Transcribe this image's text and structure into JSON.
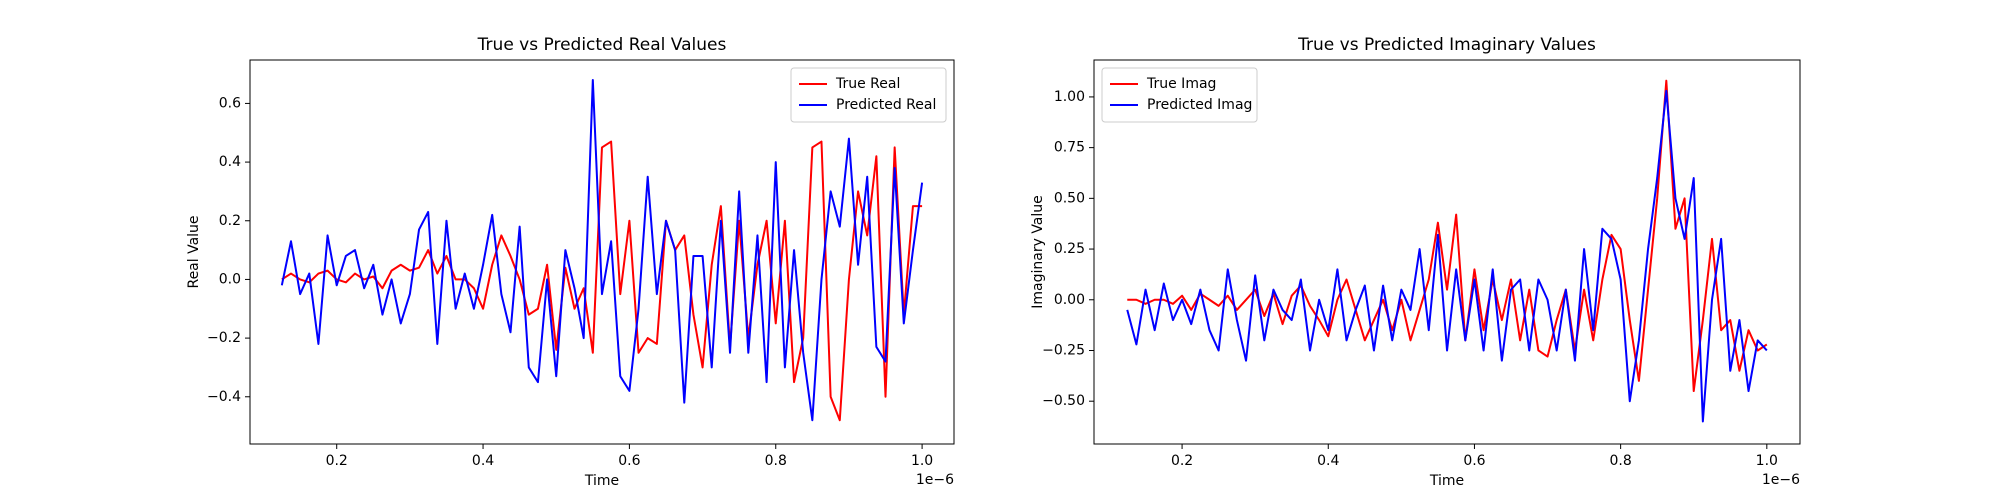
{
  "chart_data": [
    {
      "type": "line",
      "title": "True vs Predicted Real Values",
      "xlabel": "Time",
      "ylabel": "Real Value",
      "x_offset_label": "1e−6",
      "x": [
        0.125,
        0.1375,
        0.15,
        0.1625,
        0.175,
        0.1875,
        0.2,
        0.2125,
        0.225,
        0.2375,
        0.25,
        0.2625,
        0.275,
        0.2875,
        0.3,
        0.3125,
        0.325,
        0.3375,
        0.35,
        0.3625,
        0.375,
        0.3875,
        0.4,
        0.4125,
        0.425,
        0.4375,
        0.45,
        0.4625,
        0.475,
        0.4875,
        0.5,
        0.5125,
        0.525,
        0.5375,
        0.55,
        0.5625,
        0.575,
        0.5875,
        0.6,
        0.6125,
        0.625,
        0.6375,
        0.65,
        0.6625,
        0.675,
        0.6875,
        0.7,
        0.7125,
        0.725,
        0.7375,
        0.75,
        0.7625,
        0.775,
        0.7875,
        0.8,
        0.8125,
        0.825,
        0.8375,
        0.85,
        0.8625,
        0.875,
        0.8875,
        0.9,
        0.9125,
        0.925,
        0.9375,
        0.95,
        0.9625,
        0.975,
        0.9875,
        1.0
      ],
      "series": [
        {
          "name": "True Real",
          "color": "#ff0000",
          "values": [
            0.0,
            0.02,
            0.0,
            -0.01,
            0.02,
            0.03,
            0.0,
            -0.01,
            0.02,
            0.0,
            0.01,
            -0.03,
            0.03,
            0.05,
            0.03,
            0.04,
            0.1,
            0.02,
            0.08,
            0.0,
            0.0,
            -0.03,
            -0.1,
            0.05,
            0.15,
            0.08,
            0.0,
            -0.12,
            -0.1,
            0.05,
            -0.24,
            0.04,
            -0.1,
            -0.03,
            -0.25,
            0.45,
            0.47,
            -0.05,
            0.2,
            -0.25,
            -0.2,
            -0.22,
            0.2,
            0.1,
            0.15,
            -0.12,
            -0.3,
            0.05,
            0.25,
            -0.23,
            0.2,
            -0.2,
            0.05,
            0.2,
            -0.15,
            0.2,
            -0.35,
            -0.2,
            0.45,
            0.47,
            -0.4,
            -0.48,
            0.0,
            0.3,
            0.15,
            0.42,
            -0.4,
            0.45,
            -0.12,
            0.25,
            0.25
          ]
        },
        {
          "name": "Predicted Real",
          "color": "#0000ff",
          "values": [
            -0.02,
            0.13,
            -0.05,
            0.02,
            -0.22,
            0.15,
            -0.02,
            0.08,
            0.1,
            -0.03,
            0.05,
            -0.12,
            0.0,
            -0.15,
            -0.05,
            0.17,
            0.23,
            -0.22,
            0.2,
            -0.1,
            0.02,
            -0.1,
            0.05,
            0.22,
            -0.05,
            -0.18,
            0.18,
            -0.3,
            -0.35,
            0.0,
            -0.33,
            0.1,
            -0.03,
            -0.2,
            0.68,
            -0.05,
            0.13,
            -0.33,
            -0.38,
            -0.1,
            0.35,
            -0.05,
            0.2,
            0.1,
            -0.42,
            0.08,
            0.08,
            -0.3,
            0.2,
            -0.25,
            0.3,
            -0.25,
            0.15,
            -0.35,
            0.4,
            -0.3,
            0.1,
            -0.25,
            -0.48,
            0.0,
            0.3,
            0.18,
            0.48,
            0.05,
            0.35,
            -0.23,
            -0.28,
            0.38,
            -0.15,
            0.1,
            0.33
          ]
        }
      ],
      "xlim": [
        0.0815,
        1.0436
      ],
      "xticks": [
        0.2,
        0.4,
        0.6,
        0.8,
        {
          "value": 1,
          "label": "1.0"
        }
      ],
      "ylim": [
        -0.561,
        0.748
      ],
      "yticks": [
        {
          "value": -0.4,
          "label": "−0.4"
        },
        {
          "value": -0.2,
          "label": "−0.2"
        },
        {
          "value": 0,
          "label": "0.0"
        },
        0.2,
        0.4,
        0.6
      ],
      "legend": "upper right"
    },
    {
      "type": "line",
      "title": "True vs Predicted Imaginary Values",
      "xlabel": "Time",
      "ylabel": "Imaginary Value",
      "x_offset_label": "1e−6",
      "x": [
        0.125,
        0.1375,
        0.15,
        0.1625,
        0.175,
        0.1875,
        0.2,
        0.2125,
        0.225,
        0.2375,
        0.25,
        0.2625,
        0.275,
        0.2875,
        0.3,
        0.3125,
        0.325,
        0.3375,
        0.35,
        0.3625,
        0.375,
        0.3875,
        0.4,
        0.4125,
        0.425,
        0.4375,
        0.45,
        0.4625,
        0.475,
        0.4875,
        0.5,
        0.5125,
        0.525,
        0.5375,
        0.55,
        0.5625,
        0.575,
        0.5875,
        0.6,
        0.6125,
        0.625,
        0.6375,
        0.65,
        0.6625,
        0.675,
        0.6875,
        0.7,
        0.7125,
        0.725,
        0.7375,
        0.75,
        0.7625,
        0.775,
        0.7875,
        0.8,
        0.8125,
        0.825,
        0.8375,
        0.85,
        0.8625,
        0.875,
        0.8875,
        0.9,
        0.9125,
        0.925,
        0.9375,
        0.95,
        0.9625,
        0.975,
        0.9875,
        1.0
      ],
      "series": [
        {
          "name": "True Imag",
          "color": "#ff0000",
          "values": [
            0.0,
            0.0,
            -0.02,
            0.0,
            0.0,
            -0.02,
            0.02,
            -0.05,
            0.03,
            0.0,
            -0.03,
            0.02,
            -0.05,
            0.0,
            0.05,
            -0.08,
            0.03,
            -0.12,
            0.02,
            0.07,
            -0.03,
            -0.1,
            -0.18,
            0.0,
            0.1,
            -0.05,
            -0.2,
            -0.1,
            0.0,
            -0.15,
            0.0,
            -0.2,
            -0.05,
            0.1,
            0.38,
            0.05,
            0.42,
            -0.2,
            0.15,
            -0.15,
            0.1,
            -0.1,
            0.1,
            -0.2,
            0.05,
            -0.25,
            -0.28,
            -0.1,
            0.05,
            -0.25,
            0.05,
            -0.2,
            0.1,
            0.32,
            0.25,
            -0.1,
            -0.4,
            0.05,
            0.5,
            1.08,
            0.35,
            0.5,
            -0.45,
            -0.1,
            0.3,
            -0.15,
            -0.1,
            -0.35,
            -0.15,
            -0.25,
            -0.22
          ]
        },
        {
          "name": "Predicted Imag",
          "color": "#0000ff",
          "values": [
            -0.05,
            -0.22,
            0.05,
            -0.15,
            0.08,
            -0.1,
            0.0,
            -0.12,
            0.05,
            -0.15,
            -0.25,
            0.15,
            -0.1,
            -0.3,
            0.12,
            -0.2,
            0.05,
            -0.05,
            -0.1,
            0.1,
            -0.25,
            0.0,
            -0.15,
            0.15,
            -0.2,
            -0.05,
            0.07,
            -0.25,
            0.07,
            -0.2,
            0.05,
            -0.05,
            0.25,
            -0.15,
            0.32,
            -0.25,
            0.15,
            -0.2,
            0.1,
            -0.25,
            0.15,
            -0.3,
            0.05,
            0.1,
            -0.25,
            0.1,
            0.0,
            -0.25,
            0.05,
            -0.3,
            0.25,
            -0.15,
            0.35,
            0.3,
            0.1,
            -0.5,
            -0.2,
            0.25,
            0.6,
            1.03,
            0.5,
            0.3,
            0.6,
            -0.6,
            0.0,
            0.3,
            -0.35,
            -0.1,
            -0.45,
            -0.2,
            -0.25
          ]
        }
      ],
      "xlim": [
        0.0795,
        1.0454
      ],
      "xticks": [
        0.2,
        0.4,
        0.6,
        0.8,
        {
          "value": 1,
          "label": "1.0"
        }
      ],
      "ylim": [
        -0.711,
        1.182
      ],
      "yticks": [
        {
          "value": -0.5,
          "label": "−0.50"
        },
        {
          "value": -0.25,
          "label": "−0.25"
        },
        {
          "value": 0,
          "label": "0.00"
        },
        0.25,
        {
          "value": 0.5,
          "label": "0.50"
        },
        0.75,
        {
          "value": 1,
          "label": "1.00"
        }
      ],
      "legend": "upper left"
    }
  ]
}
